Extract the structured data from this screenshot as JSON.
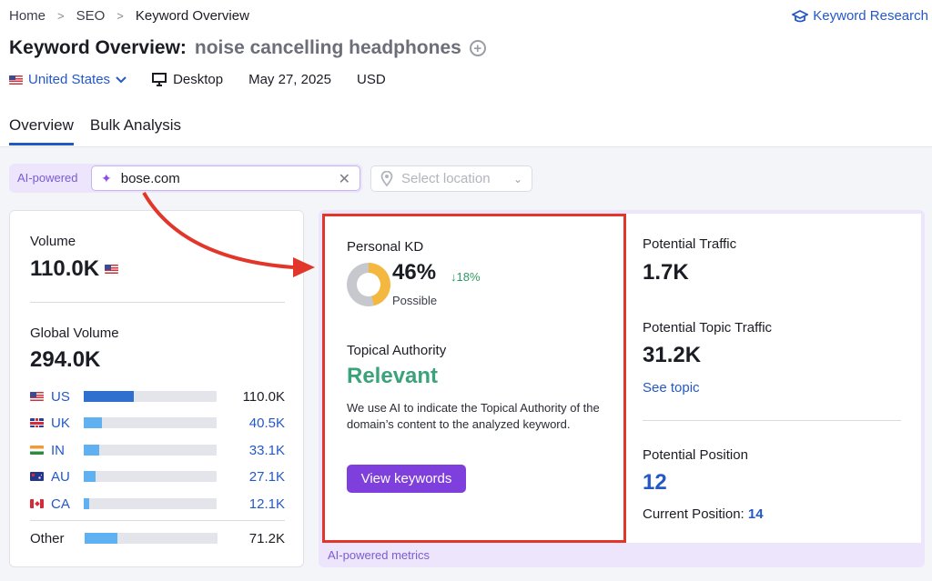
{
  "breadcrumb": {
    "home": "Home",
    "seo": "SEO",
    "current": "Keyword Overview",
    "separator": ">"
  },
  "keyword_research_link": "Keyword Research",
  "title": {
    "prefix": "Keyword Overview:",
    "keyword": "noise cancelling headphones",
    "add_icon": "+"
  },
  "meta": {
    "country": "United States",
    "device": "Desktop",
    "date": "May 27, 2025",
    "currency": "USD"
  },
  "tabs": [
    {
      "label": "Overview",
      "active": true
    },
    {
      "label": "Bulk Analysis",
      "active": false
    }
  ],
  "ai_bar": {
    "tag": "AI-powered",
    "domain_value": "bose.com",
    "location_placeholder": "Select location"
  },
  "volume": {
    "label": "Volume",
    "value": "110.0K",
    "global_label": "Global Volume",
    "global_value": "294.0K",
    "countries": [
      {
        "code": "US",
        "value": "110.0K",
        "share": 0.375
      },
      {
        "code": "UK",
        "value": "40.5K",
        "share": 0.14
      },
      {
        "code": "IN",
        "value": "33.1K",
        "share": 0.115
      },
      {
        "code": "AU",
        "value": "27.1K",
        "share": 0.09
      },
      {
        "code": "CA",
        "value": "12.1K",
        "share": 0.04
      }
    ],
    "other": {
      "label": "Other",
      "value": "71.2K",
      "share": 0.245
    }
  },
  "personal_kd": {
    "label": "Personal KD",
    "value": "46%",
    "trend": "↓18%",
    "level": "Possible",
    "percent": 46
  },
  "topical_authority": {
    "label": "Topical Authority",
    "value": "Relevant",
    "description": "We use AI to indicate the Topical Authority of the domain’s content to the analyzed keyword.",
    "button": "View keywords"
  },
  "traffic": {
    "potential_traffic_label": "Potential Traffic",
    "potential_traffic_value": "1.7K",
    "topic_traffic_label": "Potential Topic Traffic",
    "topic_traffic_value": "31.2K",
    "see_topic": "See topic",
    "position_label": "Potential Position",
    "position_value": "12",
    "current_position_label": "Current Position:",
    "current_position_value": "14"
  },
  "ai_footer": "AI-powered metrics",
  "colors": {
    "accent": "#2458c7",
    "purple": "#7e3fdc",
    "highlight": "#e2362a",
    "relevant": "#3aa37a"
  }
}
